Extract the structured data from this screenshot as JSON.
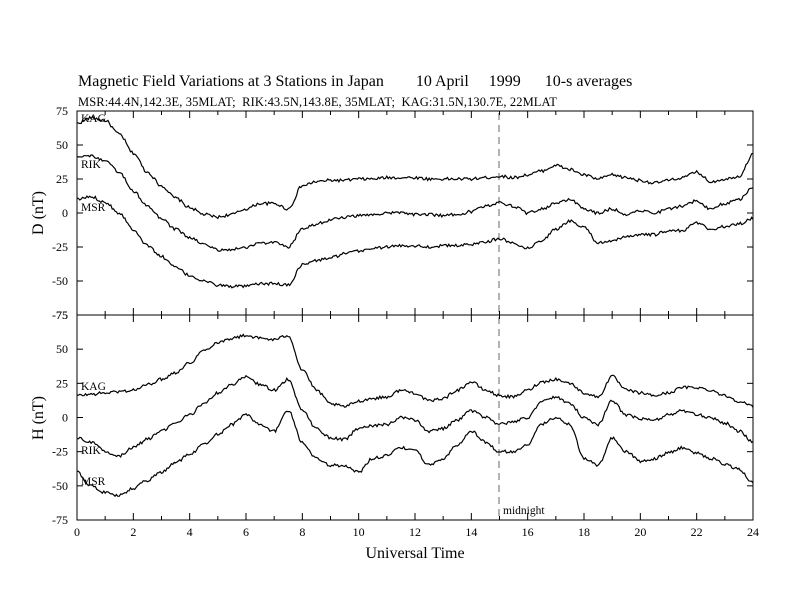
{
  "title": "Magnetic Field Variations at 3 Stations in Japan        10 April     1999      10-s averages",
  "subtitle": "MSR:44.4N,142.3E, 35MLAT;  RIK:43.5N,143.8E, 35MLAT;  KAG:31.5N,130.7E, 22MLAT",
  "chart_data": [
    {
      "type": "line",
      "ylabel": "D (nT)",
      "ylim": [
        -75,
        75
      ],
      "yticks": [
        75,
        50,
        25,
        0,
        -25,
        -50,
        -75
      ],
      "xlim": [
        0,
        24
      ],
      "station_labels": [
        "KAG",
        "RIK",
        "MSR"
      ],
      "series": [
        {
          "name": "KAG",
          "x": [
            0,
            0.5,
            1,
            1.5,
            2,
            2.5,
            3,
            3.5,
            4,
            4.5,
            5,
            5.5,
            6,
            6.5,
            7,
            7.5,
            8,
            8.5,
            9,
            9.5,
            10,
            10.5,
            11,
            11.5,
            12,
            12.5,
            13,
            13.5,
            14,
            14.5,
            15,
            15.5,
            16,
            16.5,
            17,
            17.5,
            18,
            18.5,
            19,
            19.5,
            20,
            20.5,
            21,
            21.5,
            22,
            22.5,
            23,
            23.5,
            24
          ],
          "values": [
            66,
            70,
            68,
            58,
            44,
            30,
            20,
            11,
            4,
            -1,
            -3,
            -1,
            3,
            7,
            7,
            3,
            20,
            23,
            24,
            24,
            25,
            25,
            26,
            26,
            26,
            25,
            25,
            25,
            25,
            26,
            27,
            26,
            28,
            31,
            35,
            32,
            28,
            25,
            28,
            26,
            24,
            22,
            24,
            26,
            30,
            23,
            25,
            27,
            43
          ]
        },
        {
          "name": "RIK",
          "x": [
            0,
            0.5,
            1,
            1.5,
            2,
            2.5,
            3,
            3.5,
            4,
            4.5,
            5,
            5.5,
            6,
            6.5,
            7,
            7.5,
            8,
            8.5,
            9,
            9.5,
            10,
            10.5,
            11,
            11.5,
            12,
            12.5,
            13,
            13.5,
            14,
            14.5,
            15,
            15.5,
            16,
            16.5,
            17,
            17.5,
            18,
            18.5,
            19,
            19.5,
            20,
            20.5,
            21,
            21.5,
            22,
            22.5,
            23,
            23.5,
            24
          ],
          "values": [
            42,
            42,
            38,
            30,
            16,
            5,
            -4,
            -12,
            -18,
            -23,
            -27,
            -27,
            -25,
            -22,
            -22,
            -25,
            -12,
            -8,
            -5,
            -3,
            -2,
            -1,
            0,
            0,
            -1,
            -1,
            -2,
            -1,
            1,
            5,
            8,
            5,
            0,
            3,
            7,
            10,
            3,
            0,
            3,
            -1,
            2,
            0,
            3,
            5,
            9,
            3,
            7,
            10,
            19
          ]
        },
        {
          "name": "MSR",
          "x": [
            0,
            0.5,
            1,
            1.5,
            2,
            2.5,
            3,
            3.5,
            4,
            4.5,
            5,
            5.5,
            6,
            6.5,
            7,
            7.5,
            8,
            8.5,
            9,
            9.5,
            10,
            10.5,
            11,
            11.5,
            12,
            12.5,
            13,
            13.5,
            14,
            14.5,
            15,
            15.5,
            16,
            16.5,
            17,
            17.5,
            18,
            18.5,
            19,
            19.5,
            20,
            20.5,
            21,
            21.5,
            22,
            22.5,
            23,
            23.5,
            24
          ],
          "values": [
            10,
            12,
            8,
            0,
            -12,
            -24,
            -32,
            -40,
            -46,
            -50,
            -53,
            -54,
            -54,
            -52,
            -52,
            -53,
            -38,
            -35,
            -33,
            -30,
            -28,
            -26,
            -25,
            -24,
            -24,
            -25,
            -24,
            -24,
            -23,
            -21,
            -19,
            -22,
            -26,
            -20,
            -12,
            -6,
            -10,
            -22,
            -21,
            -17,
            -16,
            -16,
            -13,
            -13,
            -7,
            -12,
            -10,
            -8,
            -4
          ]
        }
      ]
    },
    {
      "type": "line",
      "ylabel": "H (nT)",
      "ylim": [
        -75,
        75
      ],
      "yticks": [
        75,
        50,
        25,
        0,
        -25,
        -50,
        -75
      ],
      "xlim": [
        0,
        24
      ],
      "xlabel": "Universal Time",
      "xticks": [
        0,
        2,
        4,
        6,
        8,
        10,
        12,
        14,
        16,
        18,
        20,
        22,
        24
      ],
      "station_labels": [
        "KAG",
        "RIK",
        "MSR"
      ],
      "annotation": "midnight",
      "midnight_ut": 15,
      "series": [
        {
          "name": "KAG",
          "x": [
            0,
            0.5,
            1,
            1.5,
            2,
            2.5,
            3,
            3.5,
            4,
            4.5,
            5,
            5.5,
            6,
            6.5,
            7,
            7.5,
            8,
            8.5,
            9,
            9.5,
            10,
            10.5,
            11,
            11.5,
            12,
            12.5,
            13,
            13.5,
            14,
            14.5,
            15,
            15.5,
            16,
            16.5,
            17,
            17.5,
            18,
            18.5,
            19,
            19.5,
            20,
            20.5,
            21,
            21.5,
            22,
            22.5,
            23,
            23.5,
            24
          ],
          "values": [
            16,
            17,
            18,
            19,
            20,
            24,
            28,
            33,
            40,
            49,
            55,
            58,
            60,
            58,
            57,
            60,
            35,
            20,
            10,
            8,
            12,
            14,
            15,
            20,
            18,
            12,
            14,
            20,
            26,
            20,
            16,
            15,
            20,
            26,
            28,
            25,
            18,
            15,
            30,
            20,
            18,
            16,
            18,
            22,
            22,
            20,
            16,
            12,
            8
          ]
        },
        {
          "name": "RIK",
          "x": [
            0,
            0.5,
            1,
            1.5,
            2,
            2.5,
            3,
            3.5,
            4,
            4.5,
            5,
            5.5,
            6,
            6.5,
            7,
            7.5,
            8,
            8.5,
            9,
            9.5,
            10,
            10.5,
            11,
            11.5,
            12,
            12.5,
            13,
            13.5,
            14,
            14.5,
            15,
            15.5,
            16,
            16.5,
            17,
            17.5,
            18,
            18.5,
            19,
            19.5,
            20,
            20.5,
            21,
            21.5,
            22,
            22.5,
            23,
            23.5,
            24
          ],
          "values": [
            -15,
            -18,
            -25,
            -28,
            -22,
            -16,
            -10,
            -4,
            2,
            10,
            18,
            24,
            30,
            24,
            20,
            28,
            5,
            -8,
            -15,
            -16,
            -8,
            -6,
            -5,
            0,
            -2,
            -10,
            -8,
            -2,
            5,
            0,
            -5,
            -3,
            0,
            12,
            15,
            10,
            0,
            -5,
            12,
            2,
            -1,
            -2,
            2,
            5,
            2,
            0,
            -4,
            -10,
            -18
          ]
        },
        {
          "name": "MSR",
          "x": [
            0,
            0.5,
            1,
            1.5,
            2,
            2.5,
            3,
            3.5,
            4,
            4.5,
            5,
            5.5,
            6,
            6.5,
            7,
            7.5,
            8,
            8.5,
            9,
            9.5,
            10,
            10.5,
            11,
            11.5,
            12,
            12.5,
            13,
            13.5,
            14,
            14.5,
            15,
            15.5,
            16,
            16.5,
            17,
            17.5,
            18,
            18.5,
            19,
            19.5,
            20,
            20.5,
            21,
            21.5,
            22,
            22.5,
            23,
            23.5,
            24
          ],
          "values": [
            -40,
            -50,
            -55,
            -57,
            -52,
            -46,
            -40,
            -33,
            -27,
            -20,
            -12,
            -5,
            2,
            -5,
            -10,
            5,
            -18,
            -30,
            -35,
            -35,
            -40,
            -30,
            -28,
            -22,
            -24,
            -35,
            -30,
            -20,
            -10,
            -18,
            -25,
            -25,
            -20,
            -5,
            0,
            -5,
            -30,
            -35,
            -15,
            -25,
            -32,
            -30,
            -26,
            -22,
            -26,
            -30,
            -34,
            -38,
            -48
          ]
        }
      ]
    }
  ]
}
